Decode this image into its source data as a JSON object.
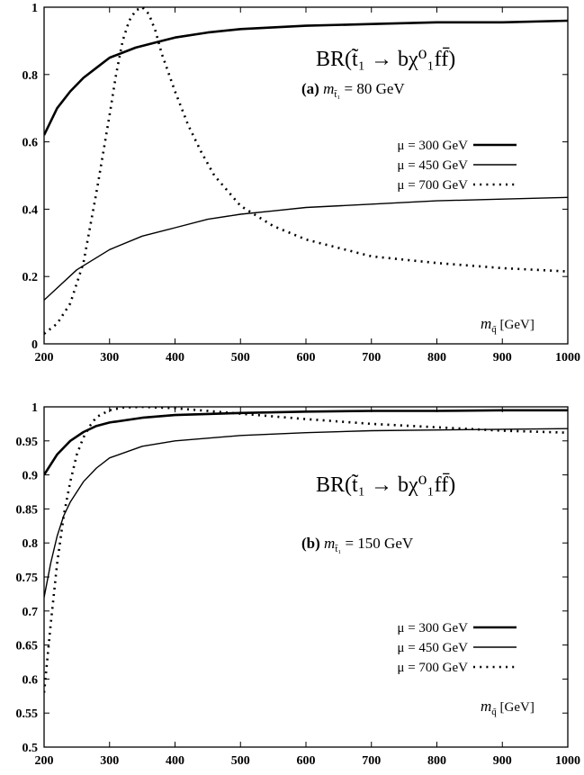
{
  "chart_data": [
    {
      "type": "line",
      "panel_label": "(a)",
      "title": "BR(t̃₁ → bχ⁰₁ff̄)",
      "mass_label": "m",
      "mass_sub": "t̃₁",
      "mass_value": "= 80 GeV",
      "xlabel": "m",
      "xlabel_sub": "q̃",
      "xlabel_unit": "[GeV]",
      "xlim": [
        200,
        1000
      ],
      "ylim": [
        0,
        1
      ],
      "xticks": [
        "200",
        "300",
        "400",
        "500",
        "600",
        "700",
        "800",
        "900",
        "1000"
      ],
      "yticks": [
        "0",
        "0.2",
        "0.4",
        "0.6",
        "0.8",
        "1"
      ],
      "series": [
        {
          "name": "μ = 300 GeV",
          "style": "thick",
          "x": [
            200,
            220,
            240,
            260,
            280,
            300,
            320,
            340,
            360,
            380,
            400,
            450,
            500,
            550,
            600,
            700,
            800,
            900,
            1000
          ],
          "y": [
            0.62,
            0.7,
            0.75,
            0.79,
            0.82,
            0.85,
            0.865,
            0.88,
            0.89,
            0.9,
            0.91,
            0.925,
            0.935,
            0.94,
            0.945,
            0.95,
            0.955,
            0.955,
            0.96
          ]
        },
        {
          "name": "μ = 450 GeV",
          "style": "thin",
          "x": [
            200,
            250,
            300,
            350,
            400,
            450,
            500,
            550,
            600,
            700,
            800,
            900,
            1000
          ],
          "y": [
            0.13,
            0.22,
            0.28,
            0.32,
            0.345,
            0.37,
            0.385,
            0.395,
            0.405,
            0.415,
            0.425,
            0.43,
            0.435
          ]
        },
        {
          "name": "μ = 700 GeV",
          "style": "dotted",
          "x": [
            200,
            220,
            240,
            260,
            280,
            300,
            310,
            320,
            330,
            340,
            350,
            360,
            370,
            380,
            400,
            420,
            440,
            460,
            500,
            550,
            600,
            700,
            800,
            900,
            1000
          ],
          "y": [
            0.03,
            0.06,
            0.12,
            0.24,
            0.45,
            0.68,
            0.8,
            0.9,
            0.96,
            0.99,
            1.0,
            0.98,
            0.93,
            0.86,
            0.75,
            0.65,
            0.57,
            0.5,
            0.41,
            0.35,
            0.31,
            0.26,
            0.24,
            0.225,
            0.215
          ]
        }
      ]
    },
    {
      "type": "line",
      "panel_label": "(b)",
      "title": "BR(t̃₁ → bχ⁰₁ff̄)",
      "mass_label": "m",
      "mass_sub": "t̃₁",
      "mass_value": "= 150 GeV",
      "xlabel": "m",
      "xlabel_sub": "q̃",
      "xlabel_unit": "[GeV]",
      "xlim": [
        200,
        1000
      ],
      "ylim": [
        0.5,
        1
      ],
      "xticks": [
        "200",
        "300",
        "400",
        "500",
        "600",
        "700",
        "800",
        "900",
        "1000"
      ],
      "yticks": [
        "0.5",
        "0.55",
        "0.6",
        "0.65",
        "0.7",
        "0.75",
        "0.8",
        "0.85",
        "0.9",
        "0.95",
        "1"
      ],
      "series": [
        {
          "name": "μ = 300 GeV",
          "style": "thick",
          "x": [
            200,
            220,
            240,
            260,
            280,
            300,
            350,
            400,
            500,
            600,
            700,
            800,
            900,
            1000
          ],
          "y": [
            0.9,
            0.93,
            0.95,
            0.963,
            0.972,
            0.977,
            0.984,
            0.988,
            0.991,
            0.993,
            0.994,
            0.994,
            0.995,
            0.995
          ]
        },
        {
          "name": "μ = 450 GeV",
          "style": "thin",
          "x": [
            200,
            210,
            220,
            230,
            240,
            260,
            280,
            300,
            350,
            400,
            500,
            600,
            700,
            800,
            900,
            1000
          ],
          "y": [
            0.72,
            0.77,
            0.81,
            0.84,
            0.86,
            0.89,
            0.91,
            0.925,
            0.942,
            0.95,
            0.958,
            0.962,
            0.965,
            0.966,
            0.967,
            0.968
          ]
        },
        {
          "name": "μ = 700 GeV",
          "style": "dotted",
          "x": [
            200,
            210,
            220,
            230,
            240,
            250,
            260,
            270,
            280,
            300,
            320,
            350,
            400,
            500,
            600,
            700,
            800,
            900,
            1000
          ],
          "y": [
            0.58,
            0.68,
            0.77,
            0.84,
            0.89,
            0.93,
            0.955,
            0.972,
            0.985,
            0.995,
            0.999,
            1.0,
            0.998,
            0.99,
            0.982,
            0.975,
            0.97,
            0.965,
            0.962
          ]
        }
      ]
    }
  ]
}
